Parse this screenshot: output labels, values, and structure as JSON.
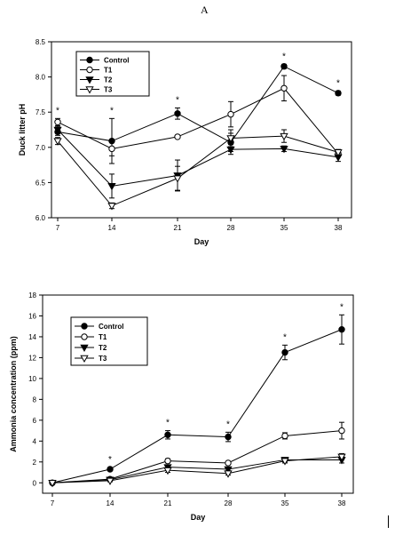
{
  "panel_label": "A",
  "chart_data": [
    {
      "type": "line",
      "xlabel": "Day",
      "ylabel": "Duck litter pH",
      "x": [
        7,
        14,
        21,
        28,
        35,
        38
      ],
      "x_ticks": [
        "7",
        "14",
        "21",
        "28",
        "35",
        "38"
      ],
      "ylim": [
        6.0,
        8.5
      ],
      "y_ticks": [
        "6.0",
        "6.5",
        "7.0",
        "7.5",
        "8.0",
        "8.5"
      ],
      "legend": "top-left",
      "significance": [
        "*",
        "*",
        "*",
        "",
        "*",
        "*"
      ],
      "series": [
        {
          "name": "Control",
          "marker": "filled-circle",
          "values": [
            7.22,
            7.09,
            7.48,
            7.07,
            8.15,
            7.77
          ],
          "errors": [
            0.05,
            0.32,
            0.08,
            0.13,
            0.03,
            0.03
          ]
        },
        {
          "name": "T1",
          "marker": "open-circle",
          "values": [
            7.36,
            6.98,
            7.15,
            7.47,
            7.84,
            6.91
          ],
          "errors": [
            0.05,
            0.1,
            0.02,
            0.18,
            0.18,
            0.03
          ]
        },
        {
          "name": "T2",
          "marker": "filled-triangle-down",
          "values": [
            7.25,
            6.45,
            6.6,
            6.97,
            6.98,
            6.86
          ],
          "errors": [
            0.05,
            0.17,
            0.22,
            0.07,
            0.04,
            0.06
          ]
        },
        {
          "name": "T3",
          "marker": "open-triangle-down",
          "values": [
            7.09,
            6.17,
            6.56,
            7.13,
            7.16,
            6.93
          ],
          "errors": [
            0.05,
            0.04,
            0.17,
            0.12,
            0.09,
            0.04
          ]
        }
      ]
    },
    {
      "type": "line",
      "xlabel": "Day",
      "ylabel": "Ammonia concentration (ppm)",
      "x": [
        7,
        14,
        21,
        28,
        35,
        38
      ],
      "x_ticks": [
        "7",
        "14",
        "21",
        "28",
        "35",
        "38"
      ],
      "ylim": [
        -1,
        18
      ],
      "y_ticks": [
        "0",
        "2",
        "4",
        "6",
        "8",
        "10",
        "12",
        "14",
        "16",
        "18"
      ],
      "legend": "top-left",
      "significance": [
        "",
        "*",
        "*",
        "*",
        "*",
        "*"
      ],
      "series": [
        {
          "name": "Control",
          "marker": "filled-circle",
          "values": [
            0.0,
            1.3,
            4.6,
            4.4,
            12.5,
            14.7
          ],
          "errors": [
            0.0,
            0.15,
            0.4,
            0.45,
            0.7,
            1.4
          ]
        },
        {
          "name": "T1",
          "marker": "open-circle",
          "values": [
            0.0,
            0.35,
            2.1,
            1.9,
            4.5,
            5.0
          ],
          "errors": [
            0.0,
            0.1,
            0.2,
            0.15,
            0.3,
            0.8
          ]
        },
        {
          "name": "T2",
          "marker": "filled-triangle-down",
          "values": [
            0.0,
            0.3,
            1.5,
            1.3,
            2.2,
            2.2
          ],
          "errors": [
            0.0,
            0.1,
            0.2,
            0.15,
            0.2,
            0.3
          ]
        },
        {
          "name": "T3",
          "marker": "open-triangle-down",
          "values": [
            0.0,
            0.2,
            1.2,
            0.9,
            2.1,
            2.5
          ],
          "errors": [
            0.0,
            0.1,
            0.2,
            0.15,
            0.2,
            0.3
          ]
        }
      ]
    }
  ]
}
